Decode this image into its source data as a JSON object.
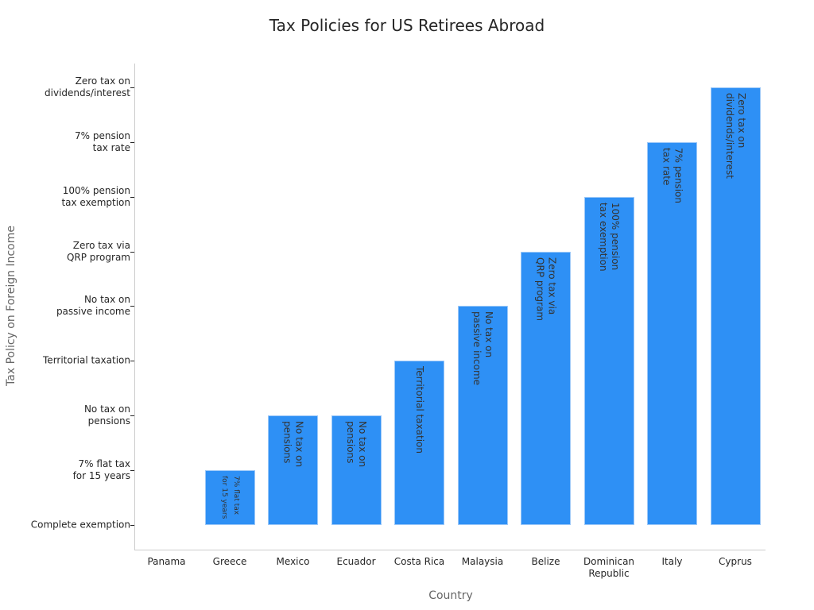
{
  "chart_data": {
    "type": "bar",
    "title": "Tax Policies for US Retirees Abroad",
    "xlabel": "Country",
    "ylabel": "Tax Policy on Foreign Income",
    "categories": [
      "Panama",
      "Greece",
      "Mexico",
      "Ecuador",
      "Costa Rica",
      "Malaysia",
      "Belize",
      "Dominican\nRepublic",
      "Italy",
      "Cyprus"
    ],
    "values": [
      0,
      1,
      2,
      2,
      3,
      4,
      5,
      6,
      7,
      8
    ],
    "bar_labels": [
      "Complete exemption",
      "7% flat tax\nfor 15 years",
      "No tax on\npensions",
      "No tax on\npensions",
      "Territorial taxation",
      "No tax on\npassive income",
      "Zero tax via\nQRP program",
      "100% pension\ntax exemption",
      "7% pension\ntax rate",
      "Zero tax on\ndividends/interest"
    ],
    "y_tick_labels": [
      "Complete exemption",
      "7% flat tax\nfor 15 years",
      "No tax on\npensions",
      "Territorial taxation",
      "No tax on\npassive income",
      "Zero tax via\nQRP program",
      "100% pension\ntax exemption",
      "7% pension\ntax rate",
      "Zero tax on\ndividends/interest"
    ],
    "ylim": [
      -0.45,
      8.45
    ],
    "grid": false,
    "color": "#2e90f5"
  }
}
